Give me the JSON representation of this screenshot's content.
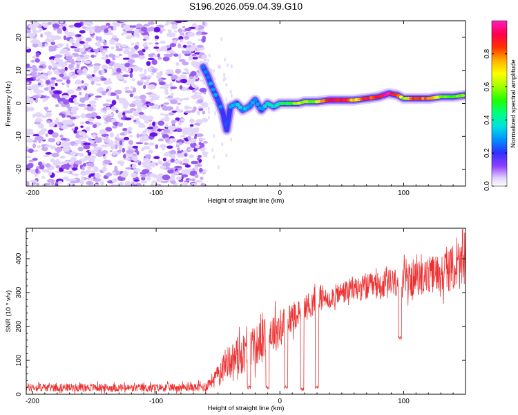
{
  "title": "S196.2026.059.04.39.G10",
  "chart_data": [
    {
      "type": "heatmap",
      "xlabel": "Height of straight line (km)",
      "ylabel": "Frequency (Hz)",
      "xlim": [
        -205,
        150
      ],
      "ylim": [
        -25,
        25
      ],
      "xticks": [
        -200,
        -100,
        0,
        100
      ],
      "yticks": [
        -20,
        -10,
        0,
        10,
        20
      ],
      "colorbar": {
        "label": "Normalized spectral amplitude",
        "range": [
          0,
          1
        ],
        "ticks": [
          "0.0",
          "0.2",
          "0.4",
          "0.6",
          "0.8"
        ],
        "colors": [
          "#ffffff",
          "#d0b8f8",
          "#8040f0",
          "#2020ff",
          "#00c0ff",
          "#00ffb0",
          "#40ff00",
          "#c0ff00",
          "#ffff00",
          "#ffc000",
          "#ff4000",
          "#ff0040",
          "#ff20c0"
        ]
      },
      "noise_region": {
        "x_from": -205,
        "x_to": -60,
        "freq_from": -25,
        "freq_to": 25,
        "level": 0.15
      },
      "ridge": [
        {
          "x": -62,
          "f": 11,
          "amp": 0.25
        },
        {
          "x": -58,
          "f": 8,
          "amp": 0.3
        },
        {
          "x": -55,
          "f": 5,
          "amp": 0.25
        },
        {
          "x": -50,
          "f": 1,
          "amp": 0.25
        },
        {
          "x": -46,
          "f": -3,
          "amp": 0.2
        },
        {
          "x": -43,
          "f": -8,
          "amp": 0.25
        },
        {
          "x": -40,
          "f": -1,
          "amp": 0.28
        },
        {
          "x": -35,
          "f": 0,
          "amp": 0.32
        },
        {
          "x": -30,
          "f": -2,
          "amp": 0.3
        },
        {
          "x": -25,
          "f": -1,
          "amp": 0.28
        },
        {
          "x": -20,
          "f": 1,
          "amp": 0.3
        },
        {
          "x": -15,
          "f": -2,
          "amp": 0.32
        },
        {
          "x": -10,
          "f": 0,
          "amp": 0.35
        },
        {
          "x": -5,
          "f": -1,
          "amp": 0.38
        },
        {
          "x": 0,
          "f": 0,
          "amp": 0.42
        },
        {
          "x": 5,
          "f": 0,
          "amp": 0.48
        },
        {
          "x": 10,
          "f": 0,
          "amp": 0.52
        },
        {
          "x": 15,
          "f": 0,
          "amp": 0.65
        },
        {
          "x": 20,
          "f": 0.5,
          "amp": 0.55
        },
        {
          "x": 30,
          "f": 0.5,
          "amp": 0.6
        },
        {
          "x": 40,
          "f": 1,
          "amp": 0.95
        },
        {
          "x": 50,
          "f": 1,
          "amp": 0.9
        },
        {
          "x": 60,
          "f": 1,
          "amp": 0.7
        },
        {
          "x": 70,
          "f": 1.5,
          "amp": 0.85
        },
        {
          "x": 80,
          "f": 2,
          "amp": 0.85
        },
        {
          "x": 88,
          "f": 3,
          "amp": 0.95
        },
        {
          "x": 95,
          "f": 2.5,
          "amp": 0.8
        },
        {
          "x": 100,
          "f": 1.5,
          "amp": 0.6
        },
        {
          "x": 110,
          "f": 1.5,
          "amp": 0.85
        },
        {
          "x": 120,
          "f": 1.5,
          "amp": 0.8
        },
        {
          "x": 130,
          "f": 2,
          "amp": 0.6
        },
        {
          "x": 140,
          "f": 2,
          "amp": 0.55
        },
        {
          "x": 150,
          "f": 2.5,
          "amp": 0.55
        }
      ]
    },
    {
      "type": "line",
      "xlabel": "Height of straight line (km)",
      "ylabel": "SNR (10 * v/v)",
      "xlim": [
        -205,
        150
      ],
      "ylim": [
        0,
        490
      ],
      "xticks": [
        -200,
        -100,
        0,
        100
      ],
      "yticks": [
        0,
        100,
        200,
        300,
        400
      ],
      "color": "#ee3030",
      "series": [
        {
          "name": "SNR",
          "x": [
            -205,
            -180,
            -150,
            -120,
            -90,
            -70,
            -60,
            -50,
            -45,
            -40,
            -35,
            -30,
            -25,
            -20,
            -15,
            -10,
            -5,
            0,
            5,
            10,
            15,
            20,
            25,
            30,
            35,
            40,
            50,
            60,
            70,
            80,
            90,
            100,
            110,
            120,
            130,
            140,
            150
          ],
          "values": [
            20,
            20,
            20,
            18,
            20,
            20,
            22,
            60,
            90,
            100,
            110,
            120,
            130,
            140,
            160,
            175,
            185,
            195,
            210,
            230,
            245,
            255,
            265,
            275,
            280,
            285,
            300,
            310,
            315,
            320,
            325,
            335,
            340,
            350,
            360,
            370,
            380
          ],
          "noise_amplitude": [
            12,
            12,
            12,
            12,
            12,
            12,
            15,
            25,
            40,
            50,
            55,
            60,
            60,
            60,
            60,
            60,
            60,
            60,
            50,
            50,
            40,
            40,
            40,
            35,
            30,
            30,
            35,
            35,
            40,
            40,
            45,
            50,
            50,
            55,
            60,
            65,
            70
          ],
          "dropouts": [
            {
              "x": -25,
              "value": 15
            },
            {
              "x": -10,
              "value": 15
            },
            {
              "x": 5,
              "value": 15
            },
            {
              "x": 18,
              "value": 10
            },
            {
              "x": 30,
              "value": 15
            },
            {
              "x": 97,
              "value": 160
            }
          ]
        }
      ]
    }
  ]
}
